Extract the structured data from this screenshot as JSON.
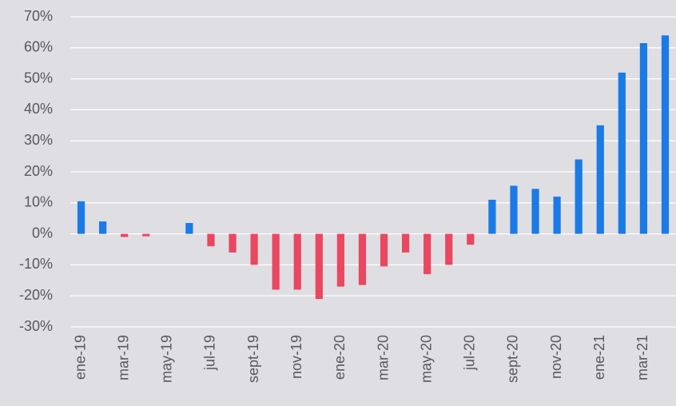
{
  "chart_data": {
    "type": "bar",
    "categories": [
      "ene-19",
      null,
      "mar-19",
      null,
      "may-19",
      null,
      "jul-19",
      null,
      "sept-19",
      null,
      "nov-19",
      null,
      "ene-20",
      null,
      "mar-20",
      null,
      "may-20",
      null,
      "jul-20",
      null,
      "sept-20",
      null,
      "nov-20",
      null,
      "ene-21",
      null,
      "mar-21",
      null
    ],
    "values": [
      10.5,
      4,
      -1,
      -0.8,
      0,
      3.5,
      -4,
      -6,
      -10,
      -18,
      -18,
      -21,
      -17,
      -16.5,
      -10.5,
      -6,
      -13,
      -10,
      -3.5,
      11,
      15.5,
      14.5,
      12,
      24,
      35,
      52,
      61.5,
      64
    ],
    "color_positive": "#1a7ae6",
    "color_negative": "#ea4760",
    "ylim": [
      -30,
      70
    ],
    "yticks": [
      {
        "value": -30,
        "label": "-30%"
      },
      {
        "value": -20,
        "label": "-20%"
      },
      {
        "value": -10,
        "label": "-10%"
      },
      {
        "value": 0,
        "label": "0%"
      },
      {
        "value": 10,
        "label": "10%"
      },
      {
        "value": 20,
        "label": "20%"
      },
      {
        "value": 30,
        "label": "30%"
      },
      {
        "value": 40,
        "label": "40%"
      },
      {
        "value": 50,
        "label": "50%"
      },
      {
        "value": 60,
        "label": "60%"
      },
      {
        "value": 70,
        "label": "70%"
      }
    ],
    "grid": true
  }
}
